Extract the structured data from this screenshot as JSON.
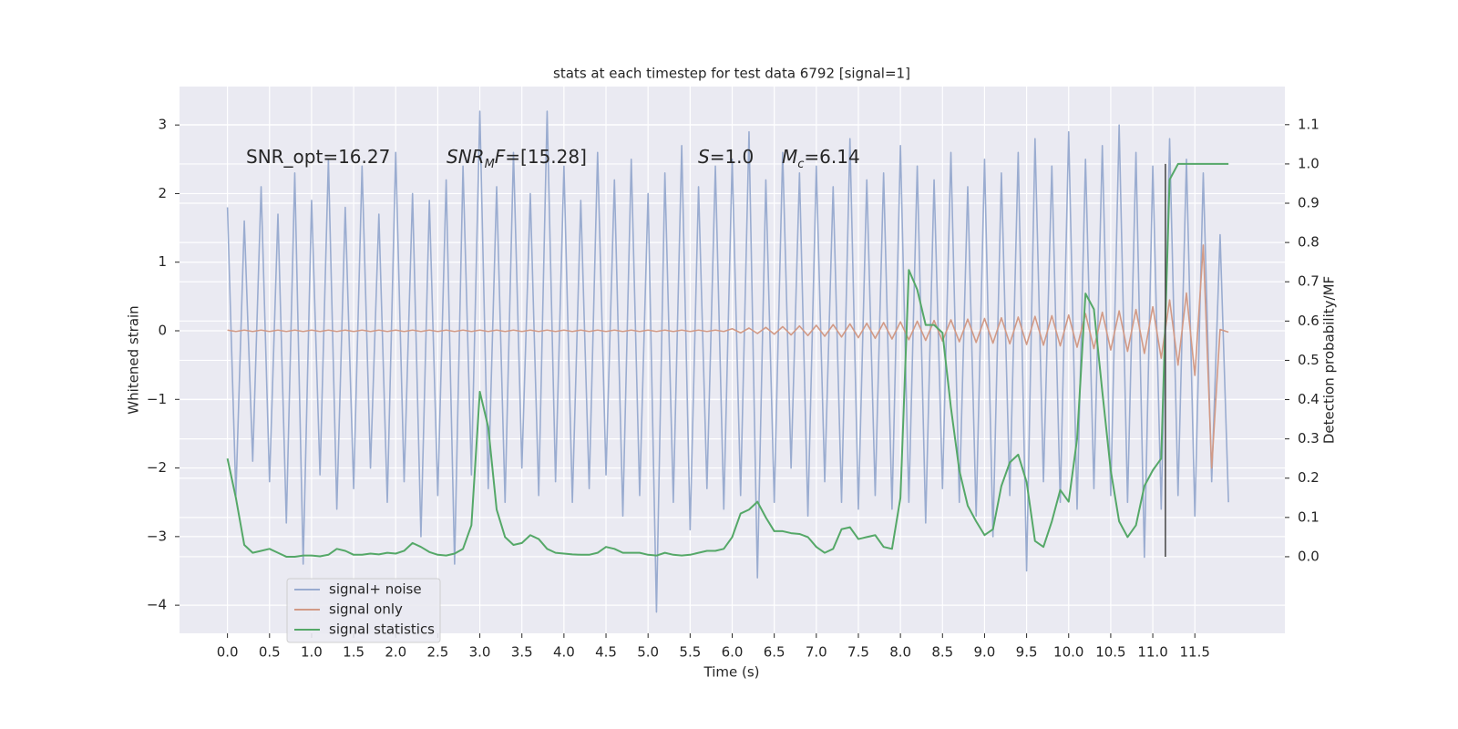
{
  "chart_data": {
    "type": "line",
    "title": "stats at each timestep for test data 6792 [signal=1]",
    "xlabel": "Time (s)",
    "ylabel": "Whitened strain",
    "y2label": "Detection probability/MF",
    "xlim": [
      -0.57,
      12.57
    ],
    "ylim": [
      -4.41,
      3.56
    ],
    "y2lim": [
      -0.195,
      1.197
    ],
    "xticks": [
      {
        "value": 0,
        "label": "0.0"
      },
      0.5,
      {
        "value": 1,
        "label": "1.0"
      },
      1.5,
      {
        "value": 2,
        "label": "2.0"
      },
      2.5,
      {
        "value": 3,
        "label": "3.0"
      },
      3.5,
      {
        "value": 4,
        "label": "4.0"
      },
      4.5,
      {
        "value": 5,
        "label": "5.0"
      },
      5.5,
      {
        "value": 6,
        "label": "6.0"
      },
      6.5,
      {
        "value": 7,
        "label": "7.0"
      },
      7.5,
      {
        "value": 8,
        "label": "8.0"
      },
      8.5,
      {
        "value": 9,
        "label": "9.0"
      },
      9.5,
      {
        "value": 10,
        "label": "10.0"
      },
      10.5,
      {
        "value": 11,
        "label": "11.0"
      },
      11.5
    ],
    "yticks": [
      {
        "value": -4,
        "label": "−4"
      },
      {
        "value": -3,
        "label": "−3"
      },
      {
        "value": -2,
        "label": "−2"
      },
      {
        "value": -1,
        "label": "−1"
      },
      0,
      1,
      2,
      3
    ],
    "y2ticks": [
      {
        "value": 0,
        "label": "0.0"
      },
      0.1,
      0.2,
      0.3,
      0.4,
      0.5,
      0.6,
      0.7,
      0.8,
      0.9,
      {
        "value": 1,
        "label": "1.0"
      },
      1.1
    ],
    "grid": true,
    "legend_loc": "lower left",
    "x": [
      0,
      0.1,
      0.2,
      0.3,
      0.4,
      0.5,
      0.6,
      0.7,
      0.8,
      0.9,
      1,
      1.1,
      1.2,
      1.3,
      1.4,
      1.5,
      1.6,
      1.7,
      1.8,
      1.9,
      2,
      2.1,
      2.2,
      2.3,
      2.4,
      2.5,
      2.6,
      2.7,
      2.8,
      2.9,
      3,
      3.1,
      3.2,
      3.3,
      3.4,
      3.5,
      3.6,
      3.7,
      3.8,
      3.9,
      4,
      4.1,
      4.2,
      4.3,
      4.4,
      4.5,
      4.6,
      4.7,
      4.8,
      4.9,
      5,
      5.1,
      5.2,
      5.3,
      5.4,
      5.5,
      5.6,
      5.7,
      5.8,
      5.9,
      6,
      6.1,
      6.2,
      6.3,
      6.4,
      6.5,
      6.6,
      6.7,
      6.8,
      6.9,
      7,
      7.1,
      7.2,
      7.3,
      7.4,
      7.5,
      7.6,
      7.7,
      7.8,
      7.9,
      8,
      8.1,
      8.2,
      8.3,
      8.4,
      8.5,
      8.6,
      8.7,
      8.8,
      8.9,
      9,
      9.1,
      9.2,
      9.3,
      9.4,
      9.5,
      9.6,
      9.7,
      9.8,
      9.9,
      10,
      10.1,
      10.2,
      10.3,
      10.4,
      10.5,
      10.6,
      10.7,
      10.8,
      10.9,
      11,
      11.1,
      11.2,
      11.3,
      11.4,
      11.5,
      11.6,
      11.7,
      11.8,
      11.9
    ],
    "series": [
      {
        "name": "signal+ noise",
        "color": "#9aacd0",
        "values": [
          1.8,
          -2.4,
          1.6,
          -1.9,
          2.1,
          -2.2,
          1.7,
          -2.8,
          2.3,
          -3.4,
          1.9,
          -2.1,
          2.5,
          -2.6,
          1.8,
          -2.3,
          2.4,
          -2.0,
          1.7,
          -2.5,
          2.6,
          -2.2,
          2.0,
          -3.0,
          1.9,
          -2.4,
          2.2,
          -3.4,
          2.4,
          -2.1,
          3.2,
          -2.3,
          2.1,
          -2.5,
          2.6,
          -2.0,
          2.0,
          -2.4,
          3.2,
          -2.2,
          2.4,
          -2.5,
          1.9,
          -2.3,
          2.6,
          -2.1,
          2.2,
          -2.7,
          2.5,
          -2.4,
          2.0,
          -4.1,
          2.3,
          -2.5,
          2.7,
          -2.9,
          2.1,
          -2.3,
          2.4,
          -2.6,
          2.5,
          -2.4,
          2.9,
          -3.6,
          2.2,
          -2.5,
          2.6,
          -2.0,
          2.3,
          -2.7,
          2.4,
          -2.2,
          2.1,
          -2.5,
          2.8,
          -2.6,
          2.2,
          -2.4,
          2.3,
          -2.6,
          2.7,
          -2.5,
          2.4,
          -2.8,
          2.2,
          -2.3,
          2.6,
          -2.5,
          2.1,
          -2.7,
          2.5,
          -3.0,
          2.3,
          -2.4,
          2.6,
          -3.5,
          2.8,
          -2.2,
          2.4,
          -2.5,
          2.9,
          -2.6,
          2.5,
          -2.3,
          2.7,
          -2.4,
          3.0,
          -2.5,
          2.6,
          -3.3,
          2.4,
          -2.6,
          2.8,
          -2.4,
          2.5,
          -2.7,
          2.3,
          -2.2,
          1.4,
          -2.5
        ]
      },
      {
        "name": "signal only",
        "color": "#d29a86",
        "values": [
          0.01,
          -0.01,
          0.01,
          -0.01,
          0.01,
          -0.01,
          0.01,
          -0.01,
          0.01,
          -0.01,
          0.01,
          -0.01,
          0.01,
          -0.01,
          0.01,
          -0.01,
          0.01,
          -0.01,
          0.01,
          -0.01,
          0.01,
          -0.01,
          0.01,
          -0.01,
          0.01,
          -0.01,
          0.01,
          -0.01,
          0.01,
          -0.01,
          0.01,
          -0.01,
          0.01,
          -0.01,
          0.01,
          -0.01,
          0.01,
          -0.01,
          0.01,
          -0.01,
          0.01,
          -0.01,
          0.01,
          -0.01,
          0.01,
          -0.01,
          0.01,
          -0.01,
          0.01,
          -0.01,
          0.01,
          -0.01,
          0.01,
          -0.01,
          0.01,
          -0.01,
          0.01,
          -0.01,
          0.01,
          -0.01,
          0.03,
          -0.03,
          0.04,
          -0.04,
          0.05,
          -0.05,
          0.06,
          -0.06,
          0.07,
          -0.07,
          0.08,
          -0.08,
          0.09,
          -0.09,
          0.1,
          -0.1,
          0.11,
          -0.11,
          0.12,
          -0.12,
          0.13,
          -0.13,
          0.14,
          -0.14,
          0.15,
          -0.15,
          0.16,
          -0.16,
          0.17,
          -0.17,
          0.18,
          -0.18,
          0.19,
          -0.19,
          0.2,
          -0.2,
          0.21,
          -0.21,
          0.22,
          -0.22,
          0.23,
          -0.24,
          0.25,
          -0.26,
          0.27,
          -0.28,
          0.29,
          -0.3,
          0.31,
          -0.33,
          0.35,
          -0.4,
          0.45,
          -0.5,
          0.55,
          -0.65,
          1.25,
          -2.0,
          0.02,
          -0.02
        ]
      },
      {
        "name": "signal statistics",
        "color": "#55a868",
        "axis": "y2",
        "values": [
          0.25,
          0.15,
          0.03,
          0.01,
          0.015,
          0.02,
          0.01,
          0,
          0,
          0.003,
          0.003,
          0.001,
          0.005,
          0.02,
          0.015,
          0.005,
          0.005,
          0.008,
          0.006,
          0.01,
          0.008,
          0.015,
          0.035,
          0.025,
          0.012,
          0.005,
          0.003,
          0.008,
          0.02,
          0.08,
          0.42,
          0.33,
          0.12,
          0.05,
          0.03,
          0.035,
          0.055,
          0.045,
          0.02,
          0.01,
          0.008,
          0.006,
          0.005,
          0.005,
          0.01,
          0.025,
          0.02,
          0.01,
          0.01,
          0.01,
          0.005,
          0.003,
          0.01,
          0.005,
          0.003,
          0.005,
          0.01,
          0.015,
          0.015,
          0.02,
          0.05,
          0.11,
          0.12,
          0.14,
          0.1,
          0.065,
          0.065,
          0.06,
          0.058,
          0.05,
          0.025,
          0.01,
          0.02,
          0.07,
          0.075,
          0.045,
          0.05,
          0.055,
          0.025,
          0.02,
          0.15,
          0.73,
          0.68,
          0.59,
          0.59,
          0.57,
          0.38,
          0.22,
          0.13,
          0.09,
          0.055,
          0.07,
          0.18,
          0.24,
          0.26,
          0.19,
          0.04,
          0.025,
          0.09,
          0.17,
          0.14,
          0.3,
          0.67,
          0.63,
          0.42,
          0.22,
          0.09,
          0.05,
          0.08,
          0.18,
          0.22,
          0.25,
          0.96,
          1,
          1,
          1,
          1,
          1,
          1,
          1
        ]
      }
    ],
    "vline": {
      "x": 11.15,
      "y2_from": 0,
      "y2_to": 1,
      "color": "#444444"
    },
    "annotations": [
      {
        "text": "SNR_opt=16.27"
      },
      {
        "italic": "SNR",
        "sub": "M",
        "italic2": "F",
        "text": "=[15.28]"
      },
      {
        "italic": "S",
        "text": "=1.0"
      },
      {
        "italic": "M",
        "sub": "c",
        "text": "=6.14"
      }
    ]
  }
}
